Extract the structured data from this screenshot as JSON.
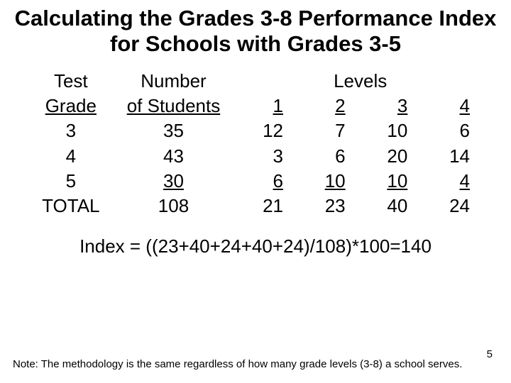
{
  "title": "Calculating the Grades 3-8 Performance Index for Schools with Grades 3-5",
  "headers": {
    "test_grade_l1": "Test",
    "test_grade_l2": "Grade",
    "num_students_l1": "Number",
    "num_students_l2": "of Students",
    "levels": "Levels",
    "lvl1": "1",
    "lvl2": "2",
    "lvl3": "3",
    "lvl4": "4"
  },
  "rows": {
    "r1": {
      "grade": "3",
      "num": "35",
      "l1": "12",
      "l2": "7",
      "l3": "10",
      "l4": "6"
    },
    "r2": {
      "grade": "4",
      "num": "43",
      "l1": "3",
      "l2": "6",
      "l3": "20",
      "l4": "14"
    },
    "r3": {
      "grade": "5",
      "num": "30",
      "l1": "6",
      "l2": "10",
      "l3": "10",
      "l4": "4"
    },
    "total": {
      "label": "TOTAL",
      "num": "108",
      "l1": "21",
      "l2": "23",
      "l3": "40",
      "l4": "24"
    }
  },
  "index_line": "Index = ((23+40+24+40+24)/108)*100=140",
  "note": "Note: The methodology is the same regardless of how many grade levels (3-8) a school serves.",
  "page_number": "5",
  "colors": {
    "background": "#ffffff",
    "text": "#000000"
  }
}
